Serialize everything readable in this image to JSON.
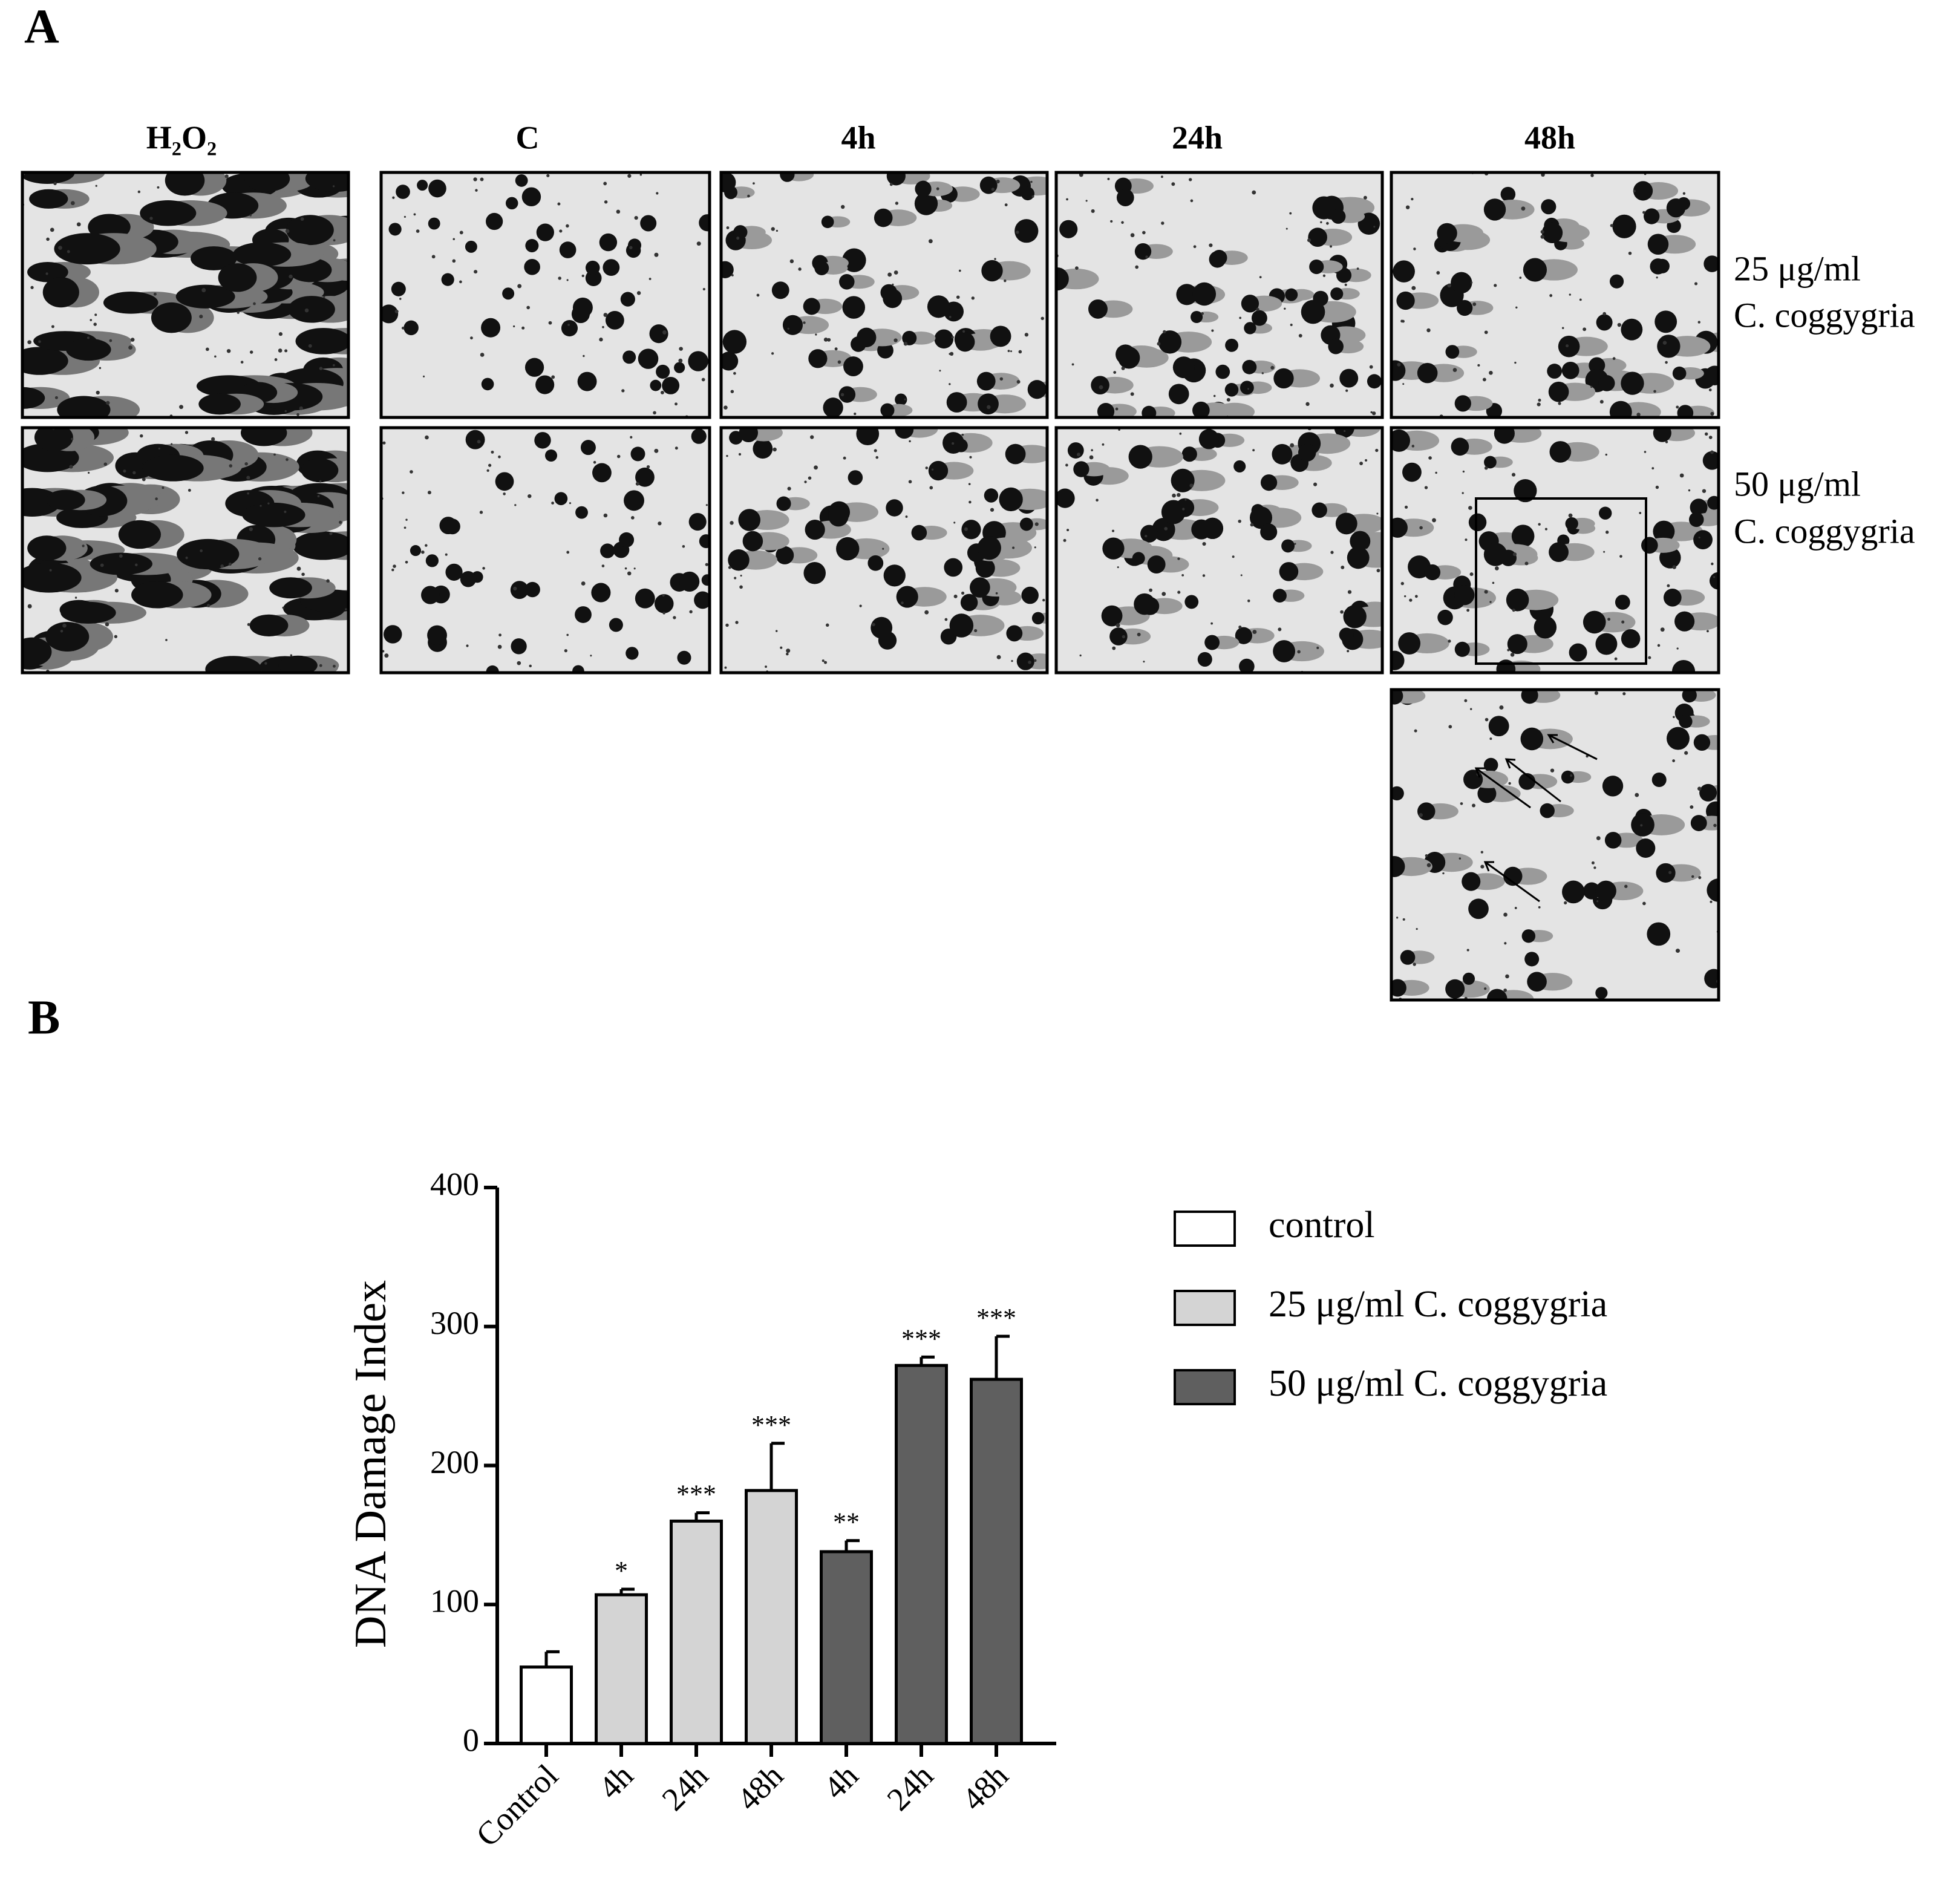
{
  "panel_a": {
    "label": "A",
    "columns": [
      "H₂O₂",
      "C",
      "4h",
      "24h",
      "48h"
    ],
    "rows": [
      {
        "dose": "25 μg/ml",
        "extract": "C. coggygria"
      },
      {
        "dose": "50 μg/ml",
        "extract": "C. coggygria"
      }
    ]
  },
  "panel_b": {
    "label": "B"
  },
  "chart_data": {
    "type": "bar",
    "y_label": "DNA Damage Index",
    "categories": [
      "Control",
      "4h",
      "24h",
      "48h",
      "4h",
      "24h",
      "48h"
    ],
    "series": [
      {
        "name": "control",
        "color": "#ffffff",
        "values": [
          55,
          null,
          null,
          null,
          null,
          null,
          null
        ],
        "errors": [
          11,
          null,
          null,
          null,
          null,
          null,
          null
        ],
        "significance": [
          null,
          null,
          null,
          null,
          null,
          null,
          null
        ]
      },
      {
        "name": "25 μg/ml C. coggygria",
        "color": "#d4d4d4",
        "values": [
          null,
          107,
          160,
          182,
          null,
          null,
          null
        ],
        "errors": [
          null,
          4,
          6,
          34,
          null,
          null,
          null
        ],
        "significance": [
          null,
          "*",
          "***",
          "***",
          null,
          null,
          null
        ]
      },
      {
        "name": "50 μg/ml C. coggygria",
        "color": "#5f5f5f",
        "values": [
          null,
          null,
          null,
          null,
          138,
          272,
          262
        ],
        "errors": [
          null,
          null,
          null,
          null,
          8,
          6,
          31
        ],
        "significance": [
          null,
          null,
          null,
          null,
          "**",
          "***",
          "***"
        ]
      }
    ],
    "ylim": [
      0,
      400
    ],
    "yticks": [
      0,
      100,
      200,
      300,
      400
    ]
  }
}
